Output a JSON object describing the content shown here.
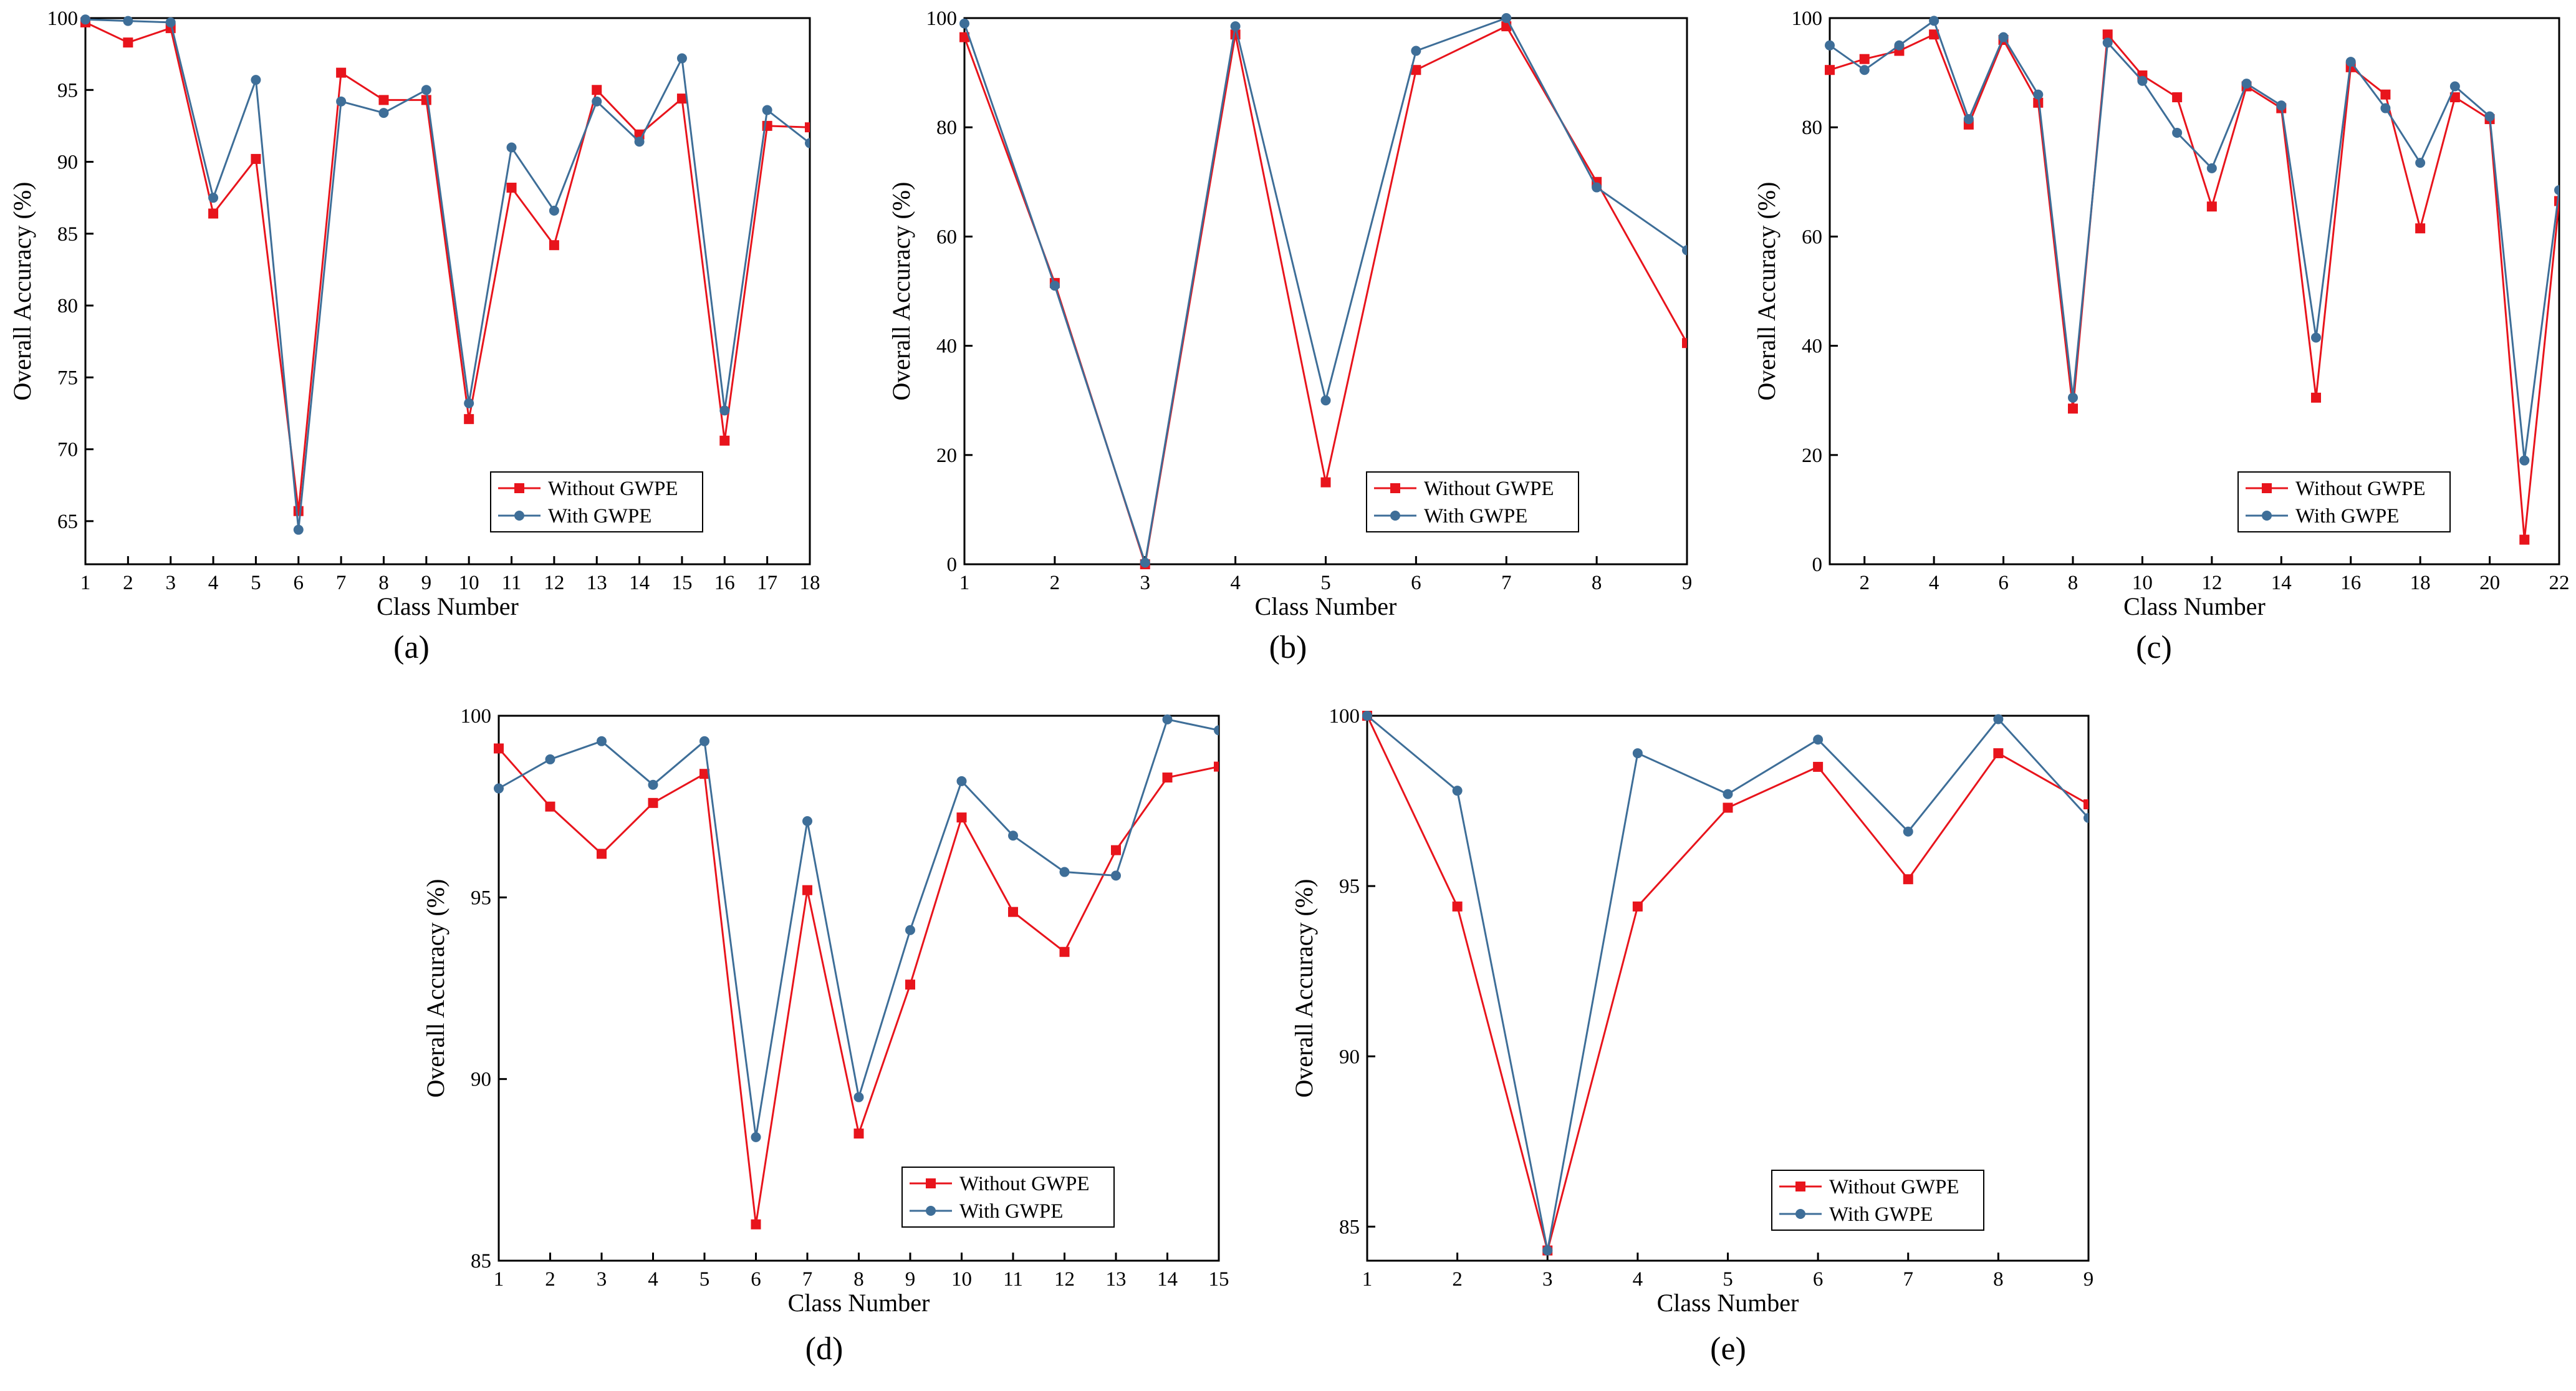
{
  "colors": {
    "without": "#e8141c",
    "with": "#3e6e98",
    "axis": "#000000"
  },
  "chart_data": [
    {
      "id": "a",
      "type": "line",
      "caption": "(a)",
      "xlabel": "Class Number",
      "ylabel": "Overall Accuracy (%)",
      "xlim": [
        1,
        18
      ],
      "ylim": [
        62,
        100
      ],
      "xticks": [
        1,
        2,
        3,
        4,
        5,
        6,
        7,
        8,
        9,
        10,
        11,
        12,
        13,
        14,
        15,
        16,
        17,
        18
      ],
      "xtick_labels": [
        "1",
        "2",
        "3",
        "4",
        "5",
        "6",
        "7",
        "8",
        "9",
        "10",
        "11",
        "12",
        "13",
        "14",
        "15",
        "16",
        "17",
        "18"
      ],
      "yticks": [
        65,
        70,
        75,
        80,
        85,
        90,
        95,
        100
      ],
      "ytick_labels": [
        "65",
        "70",
        "75",
        "80",
        "85",
        "90",
        "95",
        "100"
      ],
      "legend": {
        "position": "bottom-right"
      },
      "x": [
        1,
        2,
        3,
        4,
        5,
        6,
        7,
        8,
        9,
        10,
        11,
        12,
        13,
        14,
        15,
        16,
        17,
        18
      ],
      "series": [
        {
          "name": "Without GWPE",
          "key": "without",
          "marker": "square",
          "values": [
            99.7,
            98.3,
            99.3,
            86.4,
            90.2,
            65.7,
            96.2,
            94.3,
            94.3,
            72.1,
            88.2,
            84.2,
            95.0,
            91.9,
            94.4,
            70.6,
            92.5,
            92.4
          ]
        },
        {
          "name": "With GWPE",
          "key": "with",
          "marker": "circle",
          "values": [
            99.9,
            99.8,
            99.7,
            87.5,
            95.7,
            64.4,
            94.2,
            93.4,
            95.0,
            73.2,
            91.0,
            86.6,
            94.2,
            91.4,
            97.2,
            72.7,
            93.6,
            91.3
          ]
        }
      ]
    },
    {
      "id": "b",
      "type": "line",
      "caption": "(b)",
      "xlabel": "Class Number",
      "ylabel": "Overall Accuracy (%)",
      "xlim": [
        1,
        9
      ],
      "ylim": [
        0,
        100
      ],
      "xticks": [
        1,
        2,
        3,
        4,
        5,
        6,
        7,
        8,
        9
      ],
      "xtick_labels": [
        "1",
        "2",
        "3",
        "4",
        "5",
        "6",
        "7",
        "8",
        "9"
      ],
      "yticks": [
        0,
        20,
        40,
        60,
        80,
        100
      ],
      "ytick_labels": [
        "0",
        "20",
        "40",
        "60",
        "80",
        "100"
      ],
      "legend": {
        "position": "bottom-right"
      },
      "x": [
        1,
        2,
        3,
        4,
        5,
        6,
        7,
        8,
        9
      ],
      "series": [
        {
          "name": "Without GWPE",
          "key": "without",
          "marker": "square",
          "values": [
            96.5,
            51.5,
            0,
            97.0,
            15.0,
            90.5,
            98.5,
            70.0,
            40.5
          ]
        },
        {
          "name": "With GWPE",
          "key": "with",
          "marker": "circle",
          "values": [
            99.0,
            51.0,
            0.3,
            98.5,
            30.0,
            94.0,
            100.0,
            69.0,
            57.5
          ]
        }
      ]
    },
    {
      "id": "c",
      "type": "line",
      "caption": "(c)",
      "xlabel": "Class Number",
      "ylabel": "Overall Accuracy (%)",
      "xlim": [
        1,
        22
      ],
      "ylim": [
        0,
        100
      ],
      "xticks": [
        2,
        4,
        6,
        8,
        10,
        12,
        14,
        16,
        18,
        20,
        22
      ],
      "xtick_labels": [
        "2",
        "4",
        "6",
        "8",
        "10",
        "12",
        "14",
        "16",
        "18",
        "20",
        "22"
      ],
      "yticks": [
        0,
        20,
        40,
        60,
        80,
        100
      ],
      "ytick_labels": [
        "0",
        "20",
        "40",
        "60",
        "80",
        "100"
      ],
      "legend": {
        "position": "bottom-right"
      },
      "x": [
        1,
        2,
        3,
        4,
        5,
        6,
        7,
        8,
        9,
        10,
        11,
        12,
        13,
        14,
        15,
        16,
        17,
        18,
        19,
        20,
        21,
        22
      ],
      "series": [
        {
          "name": "Without GWPE",
          "key": "without",
          "marker": "square",
          "values": [
            90.5,
            92.5,
            94.0,
            97.0,
            80.5,
            96.0,
            84.5,
            28.5,
            97.0,
            89.5,
            85.5,
            65.5,
            87.5,
            83.5,
            30.5,
            91.0,
            86.0,
            61.5,
            85.5,
            81.5,
            4.5,
            66.5
          ]
        },
        {
          "name": "With GWPE",
          "key": "with",
          "marker": "circle",
          "values": [
            95.0,
            90.5,
            95.0,
            99.5,
            81.5,
            96.5,
            86.0,
            30.5,
            95.5,
            88.5,
            79.0,
            72.5,
            88.0,
            84.0,
            41.5,
            92.0,
            83.5,
            73.5,
            87.5,
            82.0,
            19.0,
            68.5
          ]
        }
      ]
    },
    {
      "id": "d",
      "type": "line",
      "caption": "(d)",
      "xlabel": "Class Number",
      "ylabel": "Overall Accuracy (%)",
      "xlim": [
        1,
        15
      ],
      "ylim": [
        85,
        100
      ],
      "xticks": [
        1,
        2,
        3,
        4,
        5,
        6,
        7,
        8,
        9,
        10,
        11,
        12,
        13,
        14,
        15
      ],
      "xtick_labels": [
        "1",
        "2",
        "3",
        "4",
        "5",
        "6",
        "7",
        "8",
        "9",
        "10",
        "11",
        "12",
        "13",
        "14",
        "15"
      ],
      "yticks": [
        85,
        90,
        95,
        100
      ],
      "ytick_labels": [
        "85",
        "90",
        "95",
        "100"
      ],
      "legend": {
        "position": "bottom-right"
      },
      "x": [
        1,
        2,
        3,
        4,
        5,
        6,
        7,
        8,
        9,
        10,
        11,
        12,
        13,
        14,
        15
      ],
      "series": [
        {
          "name": "Without GWPE",
          "key": "without",
          "marker": "square",
          "values": [
            99.1,
            97.5,
            96.2,
            97.6,
            98.4,
            86.0,
            95.2,
            88.5,
            92.6,
            97.2,
            94.6,
            93.5,
            96.3,
            98.3,
            98.6
          ]
        },
        {
          "name": "With GWPE",
          "key": "with",
          "marker": "circle",
          "values": [
            98.0,
            98.8,
            99.3,
            98.1,
            99.3,
            88.4,
            97.1,
            89.5,
            94.1,
            98.2,
            96.7,
            95.7,
            95.6,
            99.9,
            99.6
          ]
        }
      ]
    },
    {
      "id": "e",
      "type": "line",
      "caption": "(e)",
      "xlabel": "Class Number",
      "ylabel": "Overall Accuracy (%)",
      "xlim": [
        1,
        9
      ],
      "ylim": [
        84,
        100
      ],
      "xticks": [
        1,
        2,
        3,
        4,
        5,
        6,
        7,
        8,
        9
      ],
      "xtick_labels": [
        "1",
        "2",
        "3",
        "4",
        "5",
        "6",
        "7",
        "8",
        "9"
      ],
      "yticks": [
        85,
        90,
        95,
        100
      ],
      "ytick_labels": [
        "85",
        "90",
        "95",
        "100"
      ],
      "legend": {
        "position": "bottom-right"
      },
      "x": [
        1,
        2,
        3,
        4,
        5,
        6,
        7,
        8,
        9
      ],
      "series": [
        {
          "name": "Without GWPE",
          "key": "without",
          "marker": "square",
          "values": [
            100.0,
            94.4,
            84.3,
            94.4,
            97.3,
            98.5,
            95.2,
            98.9,
            97.4
          ]
        },
        {
          "name": "With GWPE",
          "key": "with",
          "marker": "circle",
          "values": [
            100.0,
            97.8,
            84.3,
            98.9,
            97.7,
            99.3,
            96.6,
            99.9,
            97.0
          ]
        }
      ]
    }
  ]
}
